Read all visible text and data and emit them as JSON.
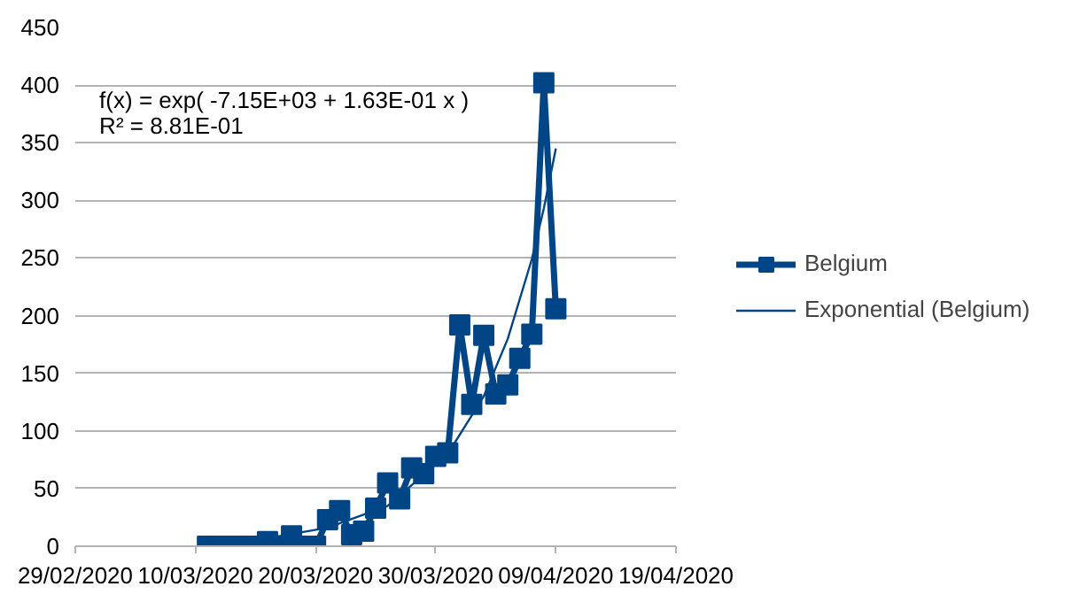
{
  "chart_data": {
    "type": "line",
    "x": [
      "2020-03-11",
      "2020-03-12",
      "2020-03-13",
      "2020-03-14",
      "2020-03-15",
      "2020-03-16",
      "2020-03-17",
      "2020-03-18",
      "2020-03-19",
      "2020-03-20",
      "2020-03-21",
      "2020-03-22",
      "2020-03-23",
      "2020-03-24",
      "2020-03-25",
      "2020-03-26",
      "2020-03-27",
      "2020-03-28",
      "2020-03-29",
      "2020-03-30",
      "2020-03-31",
      "2020-04-01",
      "2020-04-02",
      "2020-04-03",
      "2020-04-04",
      "2020-04-05",
      "2020-04-06",
      "2020-04-07",
      "2020-04-08",
      "2020-04-09"
    ],
    "series": [
      {
        "name": "Belgium",
        "color": "#004586",
        "marker": "square",
        "values": [
          0,
          0,
          0,
          0,
          0,
          4,
          0,
          9,
          0,
          0,
          23,
          31,
          10,
          13,
          33,
          55,
          41,
          68,
          63,
          78,
          81,
          192,
          123,
          183,
          132,
          140,
          163,
          184,
          402,
          206
        ]
      },
      {
        "name": "Exponential (Belgium)",
        "type": "line",
        "color": "#004586",
        "marker": "none",
        "x": [
          "2020-03-11",
          "2020-03-16",
          "2020-03-21",
          "2020-03-26",
          "2020-03-31",
          "2020-04-03",
          "2020-04-05",
          "2020-04-07",
          "2020-04-08",
          "2020-04-09"
        ],
        "values": [
          3,
          7,
          16,
          35,
          80,
          130,
          180,
          249,
          293,
          345
        ]
      }
    ],
    "xlim": [
      "2020-02-29",
      "2020-04-19"
    ],
    "xticks": [
      {
        "value": "2020-02-29",
        "label": "29/02/2020"
      },
      {
        "value": "2020-03-10",
        "label": "10/03/2020"
      },
      {
        "value": "2020-03-20",
        "label": "20/03/2020"
      },
      {
        "value": "2020-03-30",
        "label": "30/03/2020"
      },
      {
        "value": "2020-04-09",
        "label": "09/04/2020"
      },
      {
        "value": "2020-04-19",
        "label": "19/04/2020"
      }
    ],
    "ylim": [
      0,
      450
    ],
    "yticks": [
      0,
      50,
      100,
      150,
      200,
      250,
      300,
      350,
      400,
      450
    ],
    "grid": "y",
    "legend": "right",
    "line_style": "solid",
    "annotations": [
      "f(x) = exp( -7.15E+03 + 1.63E-01 x )",
      "R² = 8.81E-01"
    ]
  }
}
